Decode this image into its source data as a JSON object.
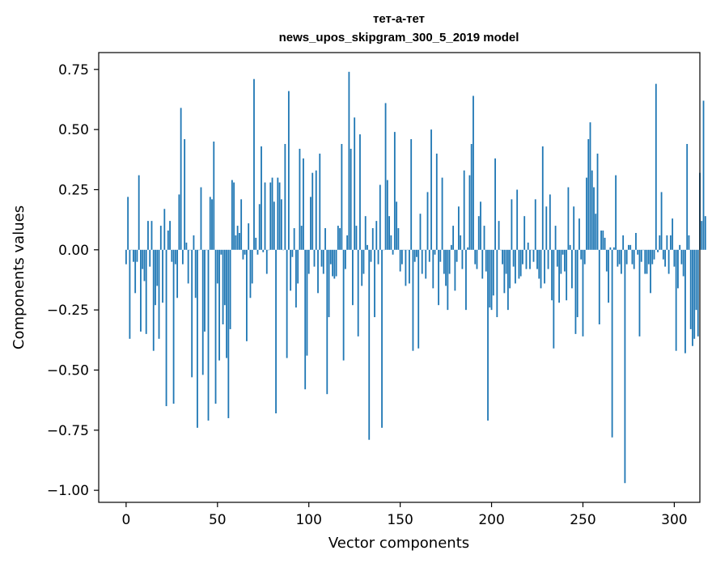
{
  "chart_data": {
    "type": "bar",
    "title_line1": "тет-а-тет",
    "title_line2": "news_upos_skipgram_300_5_2019 model",
    "xlabel": "Vector components",
    "ylabel": "Components values",
    "xlim": [
      -15,
      314
    ],
    "ylim": [
      -1.05,
      0.82
    ],
    "xticks": [
      0,
      50,
      100,
      150,
      200,
      250,
      300
    ],
    "xtick_labels": [
      "0",
      "50",
      "100",
      "150",
      "200",
      "250",
      "300"
    ],
    "yticks": [
      -1.0,
      -0.75,
      -0.5,
      -0.25,
      0.0,
      0.25,
      0.5,
      0.75
    ],
    "ytick_labels": [
      "−1.00",
      "−0.75",
      "−0.50",
      "−0.25",
      "0.00",
      "0.25",
      "0.50",
      "0.75"
    ],
    "grid": false,
    "bar_color": "#1f77b4",
    "values": [
      -0.06,
      0.22,
      -0.37,
      0.0,
      -0.05,
      -0.18,
      -0.05,
      0.31,
      -0.34,
      -0.08,
      -0.13,
      -0.35,
      0.12,
      -0.07,
      0.12,
      -0.42,
      -0.23,
      -0.15,
      -0.37,
      0.1,
      -0.22,
      0.17,
      -0.65,
      0.08,
      0.12,
      -0.05,
      -0.64,
      -0.06,
      -0.2,
      0.23,
      0.59,
      -0.06,
      0.46,
      0.03,
      -0.14,
      0.0,
      -0.53,
      0.06,
      -0.2,
      -0.74,
      0.0,
      0.26,
      -0.52,
      -0.34,
      0.0,
      -0.71,
      0.22,
      0.21,
      0.45,
      -0.64,
      -0.14,
      -0.46,
      -0.02,
      -0.31,
      -0.23,
      -0.45,
      -0.7,
      -0.33,
      0.29,
      0.28,
      0.06,
      0.1,
      0.07,
      0.21,
      -0.04,
      -0.02,
      -0.38,
      0.11,
      -0.2,
      -0.14,
      0.71,
      0.05,
      -0.02,
      0.19,
      0.43,
      -0.01,
      0.28,
      -0.1,
      0.0,
      0.28,
      0.3,
      0.2,
      -0.68,
      0.3,
      0.28,
      0.21,
      0.0,
      0.44,
      -0.45,
      0.66,
      -0.17,
      -0.03,
      0.09,
      -0.24,
      -0.14,
      0.42,
      0.1,
      0.38,
      -0.58,
      -0.44,
      -0.1,
      0.22,
      0.32,
      -0.07,
      0.33,
      -0.18,
      0.4,
      -0.07,
      -0.1,
      0.09,
      -0.6,
      -0.28,
      -0.06,
      -0.11,
      -0.12,
      -0.11,
      0.1,
      0.09,
      0.44,
      -0.46,
      -0.08,
      0.06,
      0.74,
      0.42,
      -0.23,
      0.55,
      0.1,
      -0.36,
      0.48,
      -0.15,
      -0.1,
      0.14,
      0.02,
      -0.79,
      -0.05,
      0.09,
      -0.28,
      0.12,
      -0.06,
      0.27,
      -0.74,
      0.0,
      0.61,
      0.29,
      0.14,
      0.06,
      -0.02,
      0.49,
      0.2,
      0.09,
      -0.09,
      -0.06,
      0.0,
      -0.15,
      0.0,
      -0.14,
      0.46,
      -0.42,
      -0.05,
      -0.03,
      -0.41,
      0.15,
      -0.1,
      0.0,
      -0.12,
      0.24,
      -0.05,
      0.5,
      -0.16,
      -0.02,
      0.4,
      -0.23,
      -0.05,
      0.3,
      -0.1,
      -0.15,
      -0.25,
      -0.1,
      0.02,
      0.1,
      -0.17,
      -0.05,
      0.18,
      0.06,
      -0.08,
      0.33,
      -0.25,
      0.01,
      0.31,
      0.44,
      0.64,
      -0.06,
      -0.08,
      0.14,
      0.2,
      -0.12,
      0.1,
      -0.09,
      -0.71,
      -0.24,
      -0.25,
      -0.19,
      0.38,
      -0.28,
      0.12,
      0.0,
      -0.06,
      -0.18,
      -0.1,
      -0.25,
      -0.16,
      0.21,
      -0.07,
      -0.14,
      0.25,
      -0.12,
      -0.11,
      -0.06,
      0.14,
      -0.08,
      0.03,
      -0.08,
      0.0,
      -0.05,
      0.21,
      -0.08,
      -0.12,
      -0.16,
      0.43,
      -0.14,
      0.18,
      -0.08,
      0.23,
      -0.21,
      -0.41,
      0.1,
      -0.07,
      -0.22,
      -0.1,
      -0.02,
      -0.09,
      -0.21,
      0.26,
      0.02,
      -0.16,
      0.18,
      -0.35,
      -0.28,
      0.13,
      -0.04,
      -0.36,
      -0.06,
      0.3,
      0.46,
      0.53,
      0.33,
      0.26,
      0.15,
      0.4,
      -0.31,
      0.08,
      0.08,
      0.05,
      -0.09,
      -0.22,
      0.01,
      -0.78,
      0.01,
      0.31,
      -0.07,
      -0.06,
      -0.1,
      0.06,
      -0.97,
      -0.06,
      0.02,
      0.02,
      -0.06,
      -0.08,
      0.07,
      -0.02,
      -0.36,
      -0.05,
      0.0,
      -0.1,
      -0.1,
      -0.06,
      -0.18,
      -0.06,
      -0.04,
      0.69,
      -0.01,
      0.06,
      0.24,
      -0.04,
      -0.07,
      0.06,
      -0.1,
      0.06,
      0.13,
      -0.07,
      -0.42,
      -0.16,
      0.02,
      -0.06,
      -0.11,
      -0.43,
      0.44,
      0.06,
      -0.33,
      -0.4,
      -0.37,
      -0.25,
      -0.36,
      0.32,
      0.12,
      0.62,
      0.14
    ]
  }
}
